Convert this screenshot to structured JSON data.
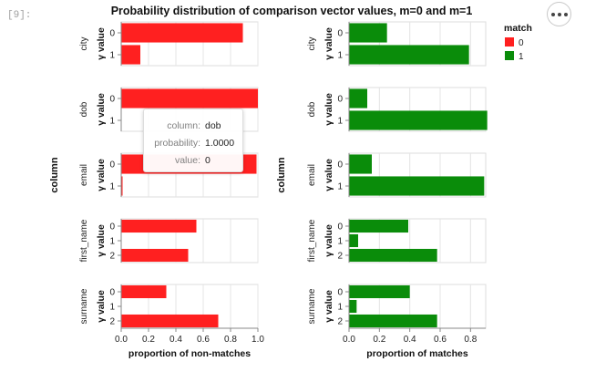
{
  "cell_prompt": "[9]:",
  "more_button_label": "more-options",
  "chart_data": {
    "type": "bar",
    "title": "Probability distribution of comparison vector values, m=0 and m=1",
    "orientation": "horizontal",
    "row_axis_title": "column",
    "y_axis_title": "γ value",
    "legend": {
      "title": "match",
      "placement": "top-right",
      "entries": [
        {
          "label": "0",
          "color": "#ff2020"
        },
        {
          "label": "1",
          "color": "#0a8c0a"
        }
      ]
    },
    "grid": true,
    "panels": [
      {
        "xlabel": "proportion of non-matches",
        "color": "#ff2020",
        "xlim": [
          0,
          1
        ],
        "xticks": [
          "0.0",
          "0.2",
          "0.4",
          "0.6",
          "0.8",
          "1.0"
        ],
        "tick_values": [
          0,
          0.2,
          0.4,
          0.6,
          0.8,
          1.0
        ],
        "rows": [
          {
            "column": "city",
            "categories": [
              "0",
              "1"
            ],
            "values": [
              0.89,
              0.14
            ]
          },
          {
            "column": "dob",
            "categories": [
              "0",
              "1"
            ],
            "values": [
              1.0,
              0.0
            ]
          },
          {
            "column": "email",
            "categories": [
              "0",
              "1"
            ],
            "values": [
              0.99,
              0.01
            ]
          },
          {
            "column": "first_name",
            "categories": [
              "0",
              "1",
              "2"
            ],
            "values": [
              0.55,
              0.0,
              0.49
            ]
          },
          {
            "column": "surname",
            "categories": [
              "0",
              "1",
              "2"
            ],
            "values": [
              0.33,
              0.0,
              0.71
            ]
          }
        ]
      },
      {
        "xlabel": "proportion of matches",
        "color": "#0a8c0a",
        "xlim": [
          0,
          0.9
        ],
        "xticks": [
          "0.0",
          "0.2",
          "0.4",
          "0.6",
          "0.8"
        ],
        "tick_values": [
          0,
          0.2,
          0.4,
          0.6,
          0.8
        ],
        "rows": [
          {
            "column": "city",
            "categories": [
              "0",
              "1"
            ],
            "values": [
              0.25,
              0.79
            ]
          },
          {
            "column": "dob",
            "categories": [
              "0",
              "1"
            ],
            "values": [
              0.12,
              0.91
            ]
          },
          {
            "column": "email",
            "categories": [
              "0",
              "1"
            ],
            "values": [
              0.15,
              0.89
            ]
          },
          {
            "column": "first_name",
            "categories": [
              "0",
              "1",
              "2"
            ],
            "values": [
              0.39,
              0.06,
              0.58
            ]
          },
          {
            "column": "surname",
            "categories": [
              "0",
              "1",
              "2"
            ],
            "values": [
              0.4,
              0.05,
              0.58
            ]
          }
        ]
      }
    ],
    "tooltip": {
      "rows": [
        {
          "key": "column:",
          "value": "dob"
        },
        {
          "key": "probability:",
          "value": "1.0000"
        },
        {
          "key": "value:",
          "value": "0"
        }
      ]
    }
  }
}
